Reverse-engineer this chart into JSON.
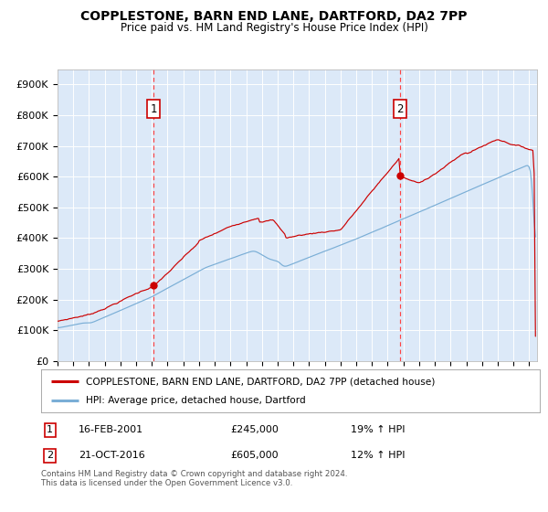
{
  "title": "COPPLESTONE, BARN END LANE, DARTFORD, DA2 7PP",
  "subtitle": "Price paid vs. HM Land Registry's House Price Index (HPI)",
  "legend_line1": "COPPLESTONE, BARN END LANE, DARTFORD, DA2 7PP (detached house)",
  "legend_line2": "HPI: Average price, detached house, Dartford",
  "annotation1_date": "16-FEB-2001",
  "annotation1_price": "£245,000",
  "annotation1_hpi": "19% ↑ HPI",
  "annotation1_year": 2001.12,
  "annotation1_value": 245000,
  "annotation2_date": "21-OCT-2016",
  "annotation2_price": "£605,000",
  "annotation2_hpi": "12% ↑ HPI",
  "annotation2_year": 2016.8,
  "annotation2_value": 605000,
  "ylabel_ticks": [
    "£0",
    "£100K",
    "£200K",
    "£300K",
    "£400K",
    "£500K",
    "£600K",
    "£700K",
    "£800K",
    "£900K"
  ],
  "ytick_values": [
    0,
    100000,
    200000,
    300000,
    400000,
    500000,
    600000,
    700000,
    800000,
    900000
  ],
  "ylim": [
    0,
    950000
  ],
  "xlim_start": 1995.0,
  "xlim_end": 2025.5,
  "background_color": "#ffffff",
  "plot_bg_color": "#dce9f8",
  "grid_color": "#cccccc",
  "hpi_line_color": "#7aaed6",
  "price_line_color": "#cc0000",
  "vline_color": "#ff4444",
  "footnote": "Contains HM Land Registry data © Crown copyright and database right 2024.\nThis data is licensed under the Open Government Licence v3.0."
}
